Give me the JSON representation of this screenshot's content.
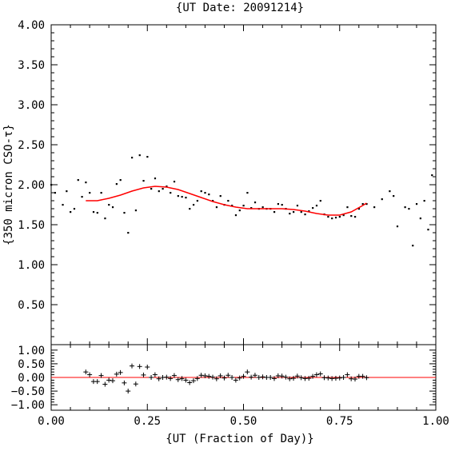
{
  "chart_data": [
    {
      "type": "scatter",
      "title": "{UT Date: 20091214}",
      "xlabel": "",
      "ylabel": "{350 micron CSO-τ}",
      "xlim": [
        0.0,
        1.0
      ],
      "ylim": [
        0.0,
        4.0
      ],
      "x_ticks": [
        "0.00",
        "0.25",
        "0.50",
        "0.75",
        "1.00"
      ],
      "y_ticks": [
        "0.50",
        "1.00",
        "1.50",
        "2.00",
        "2.50",
        "3.00",
        "3.50",
        "4.00"
      ],
      "colors": {
        "points": "#000000",
        "fit": "#ff0000"
      },
      "series": [
        {
          "marker": "dot",
          "x": [
            0.0,
            0.01,
            0.03,
            0.04,
            0.05,
            0.06,
            0.07,
            0.08,
            0.09,
            0.1,
            0.11,
            0.12,
            0.13,
            0.14,
            0.15,
            0.16,
            0.17,
            0.18,
            0.19,
            0.2,
            0.21,
            0.22,
            0.23,
            0.24,
            0.25,
            0.26,
            0.27,
            0.28,
            0.29,
            0.3,
            0.31,
            0.32,
            0.33,
            0.34,
            0.35,
            0.36,
            0.37,
            0.38,
            0.39,
            0.4,
            0.41,
            0.42,
            0.43,
            0.44,
            0.45,
            0.46,
            0.47,
            0.48,
            0.49,
            0.5,
            0.51,
            0.52,
            0.53,
            0.54,
            0.55,
            0.56,
            0.57,
            0.58,
            0.59,
            0.6,
            0.61,
            0.62,
            0.63,
            0.64,
            0.65,
            0.66,
            0.67,
            0.68,
            0.69,
            0.7,
            0.71,
            0.72,
            0.73,
            0.74,
            0.75,
            0.76,
            0.77,
            0.78,
            0.79,
            0.8,
            0.81,
            0.82,
            0.84,
            0.86,
            0.88,
            0.89,
            0.9,
            0.92,
            0.93,
            0.94,
            0.95,
            0.96,
            0.97,
            0.98,
            0.99
          ],
          "y": [
            2.0,
            1.9,
            1.75,
            1.92,
            1.66,
            1.7,
            2.06,
            1.85,
            2.03,
            1.9,
            1.66,
            1.65,
            1.9,
            1.58,
            1.75,
            1.72,
            2.01,
            2.06,
            1.65,
            1.4,
            2.34,
            1.68,
            2.37,
            2.05,
            2.35,
            1.95,
            2.08,
            1.92,
            1.95,
            1.98,
            1.9,
            2.04,
            1.86,
            1.85,
            1.84,
            1.7,
            1.75,
            1.8,
            1.92,
            1.9,
            1.88,
            1.8,
            1.72,
            1.86,
            1.75,
            1.8,
            1.74,
            1.62,
            1.68,
            1.74,
            1.9,
            1.71,
            1.78,
            1.7,
            1.72,
            1.7,
            1.7,
            1.66,
            1.76,
            1.75,
            1.7,
            1.64,
            1.66,
            1.74,
            1.66,
            1.63,
            1.67,
            1.71,
            1.74,
            1.8,
            1.63,
            1.6,
            1.58,
            1.59,
            1.6,
            1.62,
            1.72,
            1.61,
            1.6,
            1.7,
            1.76,
            1.76,
            1.72,
            1.82,
            1.92,
            1.86,
            1.48,
            1.72,
            1.7,
            1.24,
            1.76,
            1.58,
            1.8,
            1.44,
            2.12
          ]
        },
        {
          "marker": "line",
          "x": [
            0.09,
            0.12,
            0.15,
            0.18,
            0.21,
            0.24,
            0.27,
            0.3,
            0.33,
            0.36,
            0.39,
            0.42,
            0.45,
            0.48,
            0.51,
            0.54,
            0.57,
            0.6,
            0.63,
            0.66,
            0.69,
            0.72,
            0.75,
            0.78,
            0.81,
            0.82
          ],
          "y": [
            1.8,
            1.8,
            1.83,
            1.87,
            1.92,
            1.96,
            1.98,
            1.97,
            1.94,
            1.89,
            1.84,
            1.79,
            1.75,
            1.72,
            1.7,
            1.7,
            1.7,
            1.7,
            1.69,
            1.67,
            1.64,
            1.62,
            1.62,
            1.66,
            1.74,
            1.77
          ]
        }
      ]
    },
    {
      "type": "scatter",
      "title": "",
      "xlabel": "{UT (Fraction of Day)}",
      "ylabel": "",
      "xlim": [
        0.0,
        1.0
      ],
      "ylim": [
        -1.2,
        1.2
      ],
      "x_ticks": [
        "0.00",
        "0.25",
        "0.50",
        "0.75",
        "1.00"
      ],
      "y_ticks": [
        "1.00",
        "0.50",
        "0.00",
        "−0.50",
        "−1.00"
      ],
      "colors": {
        "points": "#000000",
        "zero_line": "#ff0000"
      },
      "series": [
        {
          "marker": "plus",
          "x": [
            0.09,
            0.1,
            0.11,
            0.12,
            0.13,
            0.14,
            0.15,
            0.16,
            0.17,
            0.18,
            0.19,
            0.2,
            0.21,
            0.22,
            0.23,
            0.24,
            0.25,
            0.26,
            0.27,
            0.28,
            0.29,
            0.3,
            0.31,
            0.32,
            0.33,
            0.34,
            0.35,
            0.36,
            0.37,
            0.38,
            0.39,
            0.4,
            0.41,
            0.42,
            0.43,
            0.44,
            0.45,
            0.46,
            0.47,
            0.48,
            0.49,
            0.5,
            0.51,
            0.52,
            0.53,
            0.54,
            0.55,
            0.56,
            0.57,
            0.58,
            0.59,
            0.6,
            0.61,
            0.62,
            0.63,
            0.64,
            0.65,
            0.66,
            0.67,
            0.68,
            0.69,
            0.7,
            0.71,
            0.72,
            0.73,
            0.74,
            0.75,
            0.76,
            0.77,
            0.78,
            0.79,
            0.8,
            0.81,
            0.82
          ],
          "y": [
            0.2,
            0.1,
            -0.15,
            -0.15,
            0.07,
            -0.25,
            -0.1,
            -0.12,
            0.12,
            0.18,
            -0.2,
            -0.5,
            0.42,
            -0.24,
            0.4,
            0.09,
            0.38,
            0.0,
            0.1,
            -0.05,
            0.0,
            0.01,
            -0.04,
            0.07,
            -0.08,
            -0.04,
            -0.1,
            -0.19,
            -0.12,
            -0.04,
            0.08,
            0.06,
            0.04,
            0.01,
            -0.05,
            0.06,
            -0.02,
            0.08,
            0.0,
            -0.1,
            -0.02,
            0.04,
            0.2,
            0.01,
            0.08,
            0.0,
            0.02,
            0.0,
            0.0,
            -0.04,
            0.06,
            0.05,
            0.01,
            -0.05,
            -0.03,
            0.05,
            -0.01,
            -0.04,
            -0.03,
            0.04,
            0.1,
            0.13,
            -0.01,
            -0.02,
            -0.04,
            -0.03,
            -0.02,
            0.0,
            0.1,
            -0.05,
            -0.06,
            0.04,
            0.04,
            -0.01
          ]
        }
      ]
    }
  ]
}
